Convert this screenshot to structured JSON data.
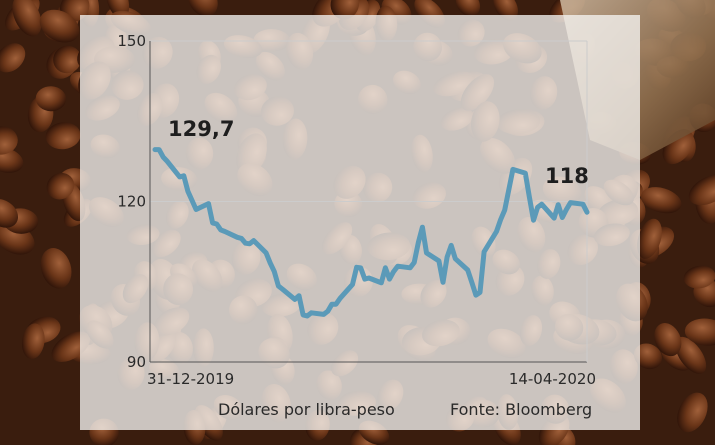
{
  "chart_data": {
    "type": "line",
    "series": [
      {
        "x": [
          "2019-12-31",
          "2020-01-01",
          "2020-01-02",
          "2020-01-03",
          "2020-01-06",
          "2020-01-07",
          "2020-01-08",
          "2020-01-09",
          "2020-01-10",
          "2020-01-13",
          "2020-01-14",
          "2020-01-15",
          "2020-01-16",
          "2020-01-17",
          "2020-01-20",
          "2020-01-21",
          "2020-01-22",
          "2020-01-23",
          "2020-01-24",
          "2020-01-27",
          "2020-01-28",
          "2020-01-29",
          "2020-01-30",
          "2020-01-31",
          "2020-02-03",
          "2020-02-04",
          "2020-02-05",
          "2020-02-06",
          "2020-02-07",
          "2020-02-10",
          "2020-02-11",
          "2020-02-12",
          "2020-02-13",
          "2020-02-14",
          "2020-02-17",
          "2020-02-18",
          "2020-02-19",
          "2020-02-20",
          "2020-02-21",
          "2020-02-24",
          "2020-02-25",
          "2020-02-26",
          "2020-02-27",
          "2020-02-28",
          "2020-03-02",
          "2020-03-03",
          "2020-03-04",
          "2020-03-05",
          "2020-03-06",
          "2020-03-09",
          "2020-03-10",
          "2020-03-11",
          "2020-03-12",
          "2020-03-13",
          "2020-03-16",
          "2020-03-17",
          "2020-03-18",
          "2020-03-19",
          "2020-03-20",
          "2020-03-23",
          "2020-03-24",
          "2020-03-25",
          "2020-03-26",
          "2020-03-27",
          "2020-03-30",
          "2020-03-31",
          "2020-04-01",
          "2020-04-02",
          "2020-04-03",
          "2020-04-06",
          "2020-04-07",
          "2020-04-08",
          "2020-04-09",
          "2020-04-10",
          "2020-04-13",
          "2020-04-14"
        ],
        "values": [
          129.7,
          129.7,
          128.3,
          127.5,
          124.6,
          124.8,
          121.9,
          120.2,
          118.5,
          119.6,
          116.0,
          115.8,
          114.7,
          114.4,
          113.3,
          113.1,
          112.2,
          112.1,
          112.7,
          110.4,
          108.5,
          106.9,
          104.2,
          103.6,
          101.7,
          102.4,
          98.8,
          98.6,
          99.2,
          98.9,
          99.5,
          100.8,
          100.8,
          101.9,
          104.5,
          107.7,
          107.6,
          105.5,
          105.7,
          104.8,
          107.6,
          105.5,
          106.9,
          107.9,
          107.6,
          108.6,
          112.3,
          115.2,
          110.4,
          108.9,
          104.9,
          109.6,
          111.8,
          109.3,
          107.2,
          104.9,
          102.5,
          103.0,
          110.6,
          114.4,
          116.6,
          118.4,
          122.2,
          126.0,
          125.3,
          120.8,
          116.5,
          118.9,
          119.5,
          116.9,
          119.4,
          117.0,
          118.5,
          119.8,
          119.5,
          118.0
        ]
      }
    ],
    "ylim": [
      90,
      150
    ],
    "yticks": [
      90,
      120,
      150
    ],
    "xtick_labels": [
      "31-12-2019",
      "14-04-2020"
    ],
    "annotations": {
      "start": "129,7",
      "end": "118"
    },
    "ylabel": "Dólares por libra-peso",
    "source": "Fonte: Bloomberg",
    "colors": {
      "line": "#5b9ab8",
      "grid": "#cccccc",
      "axis": "#555555"
    }
  }
}
